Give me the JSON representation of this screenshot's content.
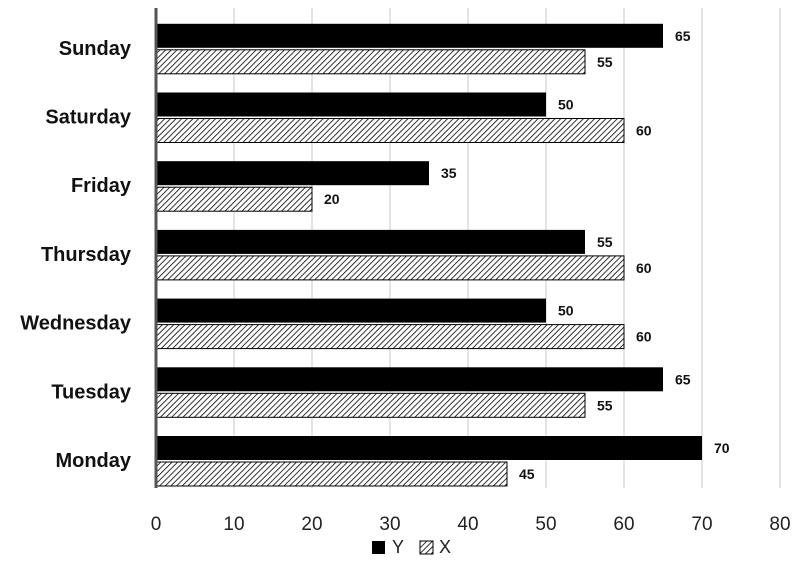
{
  "chart_data": {
    "type": "bar",
    "orientation": "horizontal",
    "categories": [
      "Monday",
      "Tuesday",
      "Wednesday",
      "Thursday",
      "Friday",
      "Saturday",
      "Sunday"
    ],
    "series": [
      {
        "name": "Y",
        "values": [
          70,
          65,
          50,
          55,
          35,
          50,
          65
        ],
        "color": "#000000",
        "pattern": "solid"
      },
      {
        "name": "X",
        "values": [
          45,
          55,
          60,
          60,
          20,
          60,
          55
        ],
        "color": "#000000",
        "pattern": "diagonal-hatch"
      }
    ],
    "xlim": [
      0,
      80
    ],
    "xticks": [
      0,
      10,
      20,
      30,
      40,
      50,
      60,
      70,
      80
    ],
    "grid": true,
    "legend": "bottom-center",
    "title": "",
    "xlabel": "",
    "ylabel": ""
  }
}
